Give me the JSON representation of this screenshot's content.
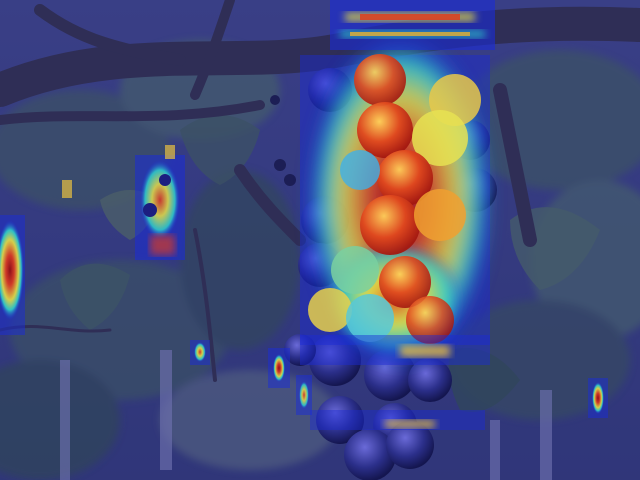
{
  "image": {
    "subject": "",
    "colors": {
      "tint": "#3a3f9e",
      "branch": "#2a2630",
      "leaf_dark": "#2c4a3a",
      "leaf_light": "#5f7f55",
      "grape": "#2b2f8a",
      "heat_low": "#1a2bd8",
      "heat_mid": "#2fd0c8",
      "heat_high_mid": "#e8e040",
      "heat_high": "#e23a1a",
      "heat_peak": "#9a0a0a"
    },
    "overlay": {
      "type": "heatmap",
      "colormap": "jet",
      "regions": [
        {
          "name": "main-grape-cluster",
          "level": 0.95
        },
        {
          "name": "top-band",
          "level": 0.55
        },
        {
          "name": "left-small-cluster",
          "level": 0.7
        },
        {
          "name": "far-left-edge",
          "level": 0.75
        },
        {
          "name": "bottom-band",
          "level": 0.5
        },
        {
          "name": "small-right-patch",
          "level": 0.6
        },
        {
          "name": "small-center-patch",
          "level": 0.55
        }
      ]
    }
  }
}
